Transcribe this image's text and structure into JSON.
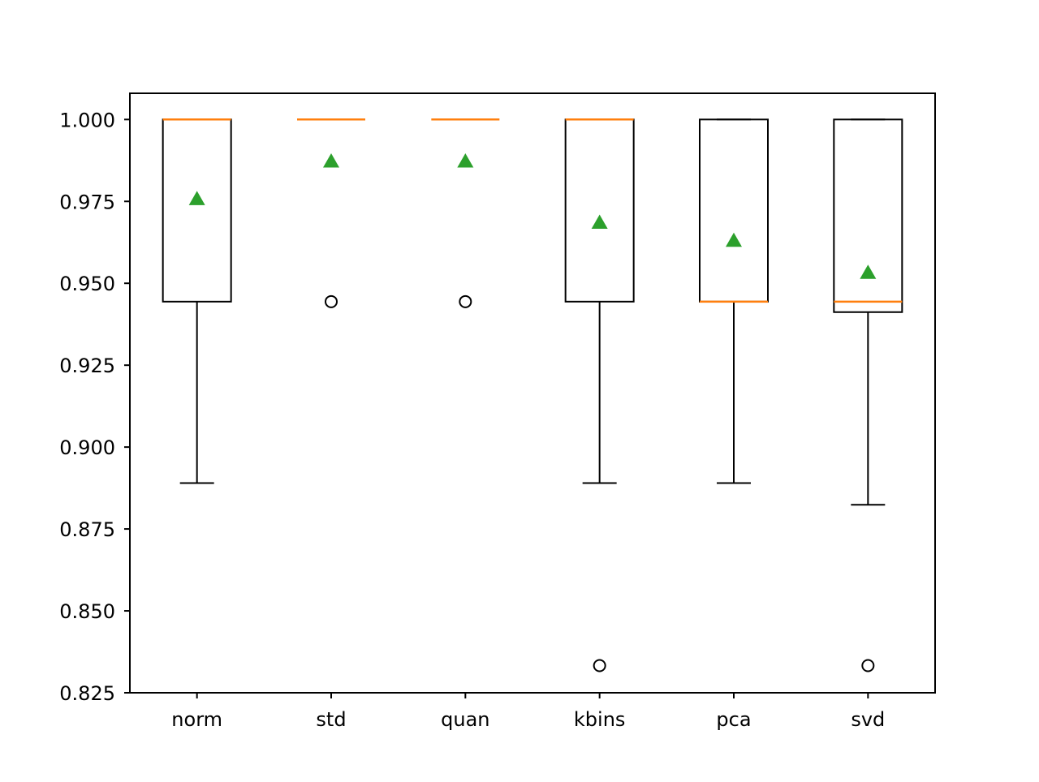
{
  "chart_data": {
    "type": "box",
    "title": "",
    "xlabel": "",
    "ylabel": "",
    "ylim": [
      0.825,
      1.008
    ],
    "yticks": [
      0.825,
      0.85,
      0.875,
      0.9,
      0.925,
      0.95,
      0.975,
      1.0
    ],
    "ytick_labels": [
      "0.825",
      "0.850",
      "0.875",
      "0.900",
      "0.925",
      "0.950",
      "0.975",
      "1.000"
    ],
    "categories": [
      "norm",
      "std",
      "quan",
      "kbins",
      "pca",
      "svd"
    ],
    "boxes": [
      {
        "label": "norm",
        "whisker_low": 0.889,
        "q1": 0.9444,
        "median": 1.0,
        "q3": 1.0,
        "whisker_high": 1.0,
        "mean": 0.9757,
        "outliers": []
      },
      {
        "label": "std",
        "whisker_low": 1.0,
        "q1": 1.0,
        "median": 1.0,
        "q3": 1.0,
        "whisker_high": 1.0,
        "mean": 0.9872,
        "outliers": [
          0.9444
        ]
      },
      {
        "label": "quan",
        "whisker_low": 1.0,
        "q1": 1.0,
        "median": 1.0,
        "q3": 1.0,
        "whisker_high": 1.0,
        "mean": 0.9872,
        "outliers": [
          0.9444
        ]
      },
      {
        "label": "kbins",
        "whisker_low": 0.889,
        "q1": 0.9444,
        "median": 1.0,
        "q3": 1.0,
        "whisker_high": 1.0,
        "mean": 0.9685,
        "outliers": [
          0.8333
        ]
      },
      {
        "label": "pca",
        "whisker_low": 0.889,
        "q1": 0.9444,
        "median": 0.9444,
        "q3": 1.0,
        "whisker_high": 1.0,
        "mean": 0.963,
        "outliers": []
      },
      {
        "label": "svd",
        "whisker_low": 0.8824,
        "q1": 0.9412,
        "median": 0.9444,
        "q3": 1.0,
        "whisker_high": 1.0,
        "mean": 0.9532,
        "outliers": [
          0.8333
        ]
      }
    ],
    "colors": {
      "box": "#000000",
      "median": "#ff7f0e",
      "mean_marker": "#2ca02c",
      "outlier": "#000000"
    },
    "grid": false,
    "legend": "none"
  }
}
